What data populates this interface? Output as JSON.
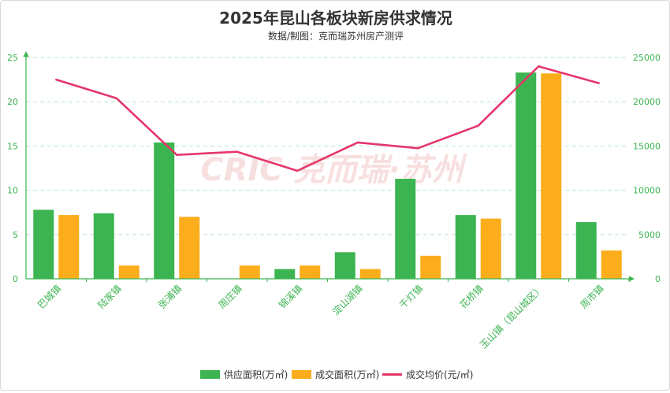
{
  "chart_data": {
    "type": "bar",
    "title": "2025年昆山各板块新房供求情况",
    "subtitle": "数据/制图：克而瑞苏州房产测评",
    "watermark": "CRIC 克而瑞·苏州",
    "categories": [
      "巴城镇",
      "陆家镇",
      "张浦镇",
      "周庄镇",
      "锦溪镇",
      "淀山湖镇",
      "千灯镇",
      "花桥镇",
      "玉山镇（昆山城区）",
      "周市镇"
    ],
    "series": [
      {
        "name": "供应面积(万㎡)",
        "type": "bar",
        "axis": "left",
        "color": "#3cb451",
        "values": [
          7.8,
          7.4,
          15.4,
          0,
          1.1,
          3.0,
          11.3,
          7.2,
          23.3,
          6.4
        ]
      },
      {
        "name": "成交面积(万㎡)",
        "type": "bar",
        "axis": "left",
        "color": "#fbad1b",
        "values": [
          7.2,
          1.5,
          7.0,
          1.5,
          1.5,
          1.1,
          2.6,
          6.8,
          23.2,
          3.2
        ]
      },
      {
        "name": "成交均价(元/㎡)",
        "type": "line",
        "axis": "right",
        "color": "#e5366a",
        "values": [
          22500,
          20400,
          14000,
          14350,
          12200,
          15400,
          14750,
          17300,
          24000,
          22100
        ]
      }
    ],
    "y_left": {
      "min": 0,
      "max": 25,
      "ticks": [
        "0",
        "5",
        "10",
        "15",
        "20",
        "25"
      ]
    },
    "y_right": {
      "min": 0,
      "max": 25000,
      "ticks": [
        "0",
        "5000",
        "10000",
        "15000",
        "20000",
        "25000"
      ]
    },
    "grid": true,
    "legend_position": "bottom-center",
    "colors": {
      "axis": "#3cb451",
      "grid": "#b9e6d6",
      "tick_label": "#3cb451",
      "title": "#333333"
    }
  }
}
